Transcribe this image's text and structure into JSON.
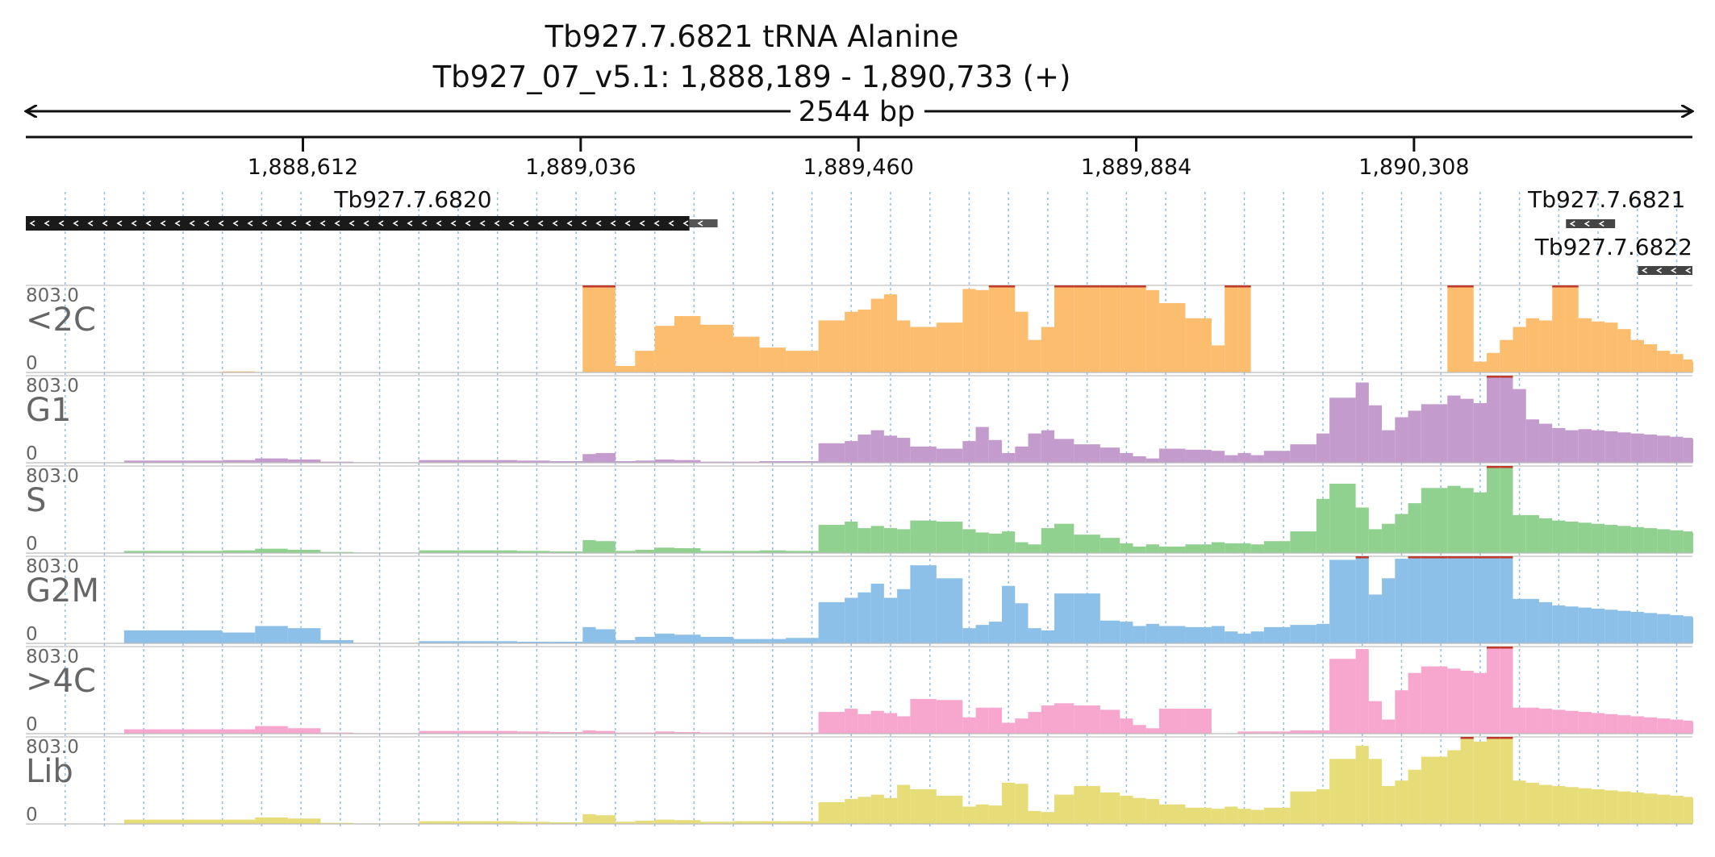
{
  "header": {
    "title_line1": "Tb927.7.6821  tRNA Alanine",
    "title_line2": "Tb927_07_v5.1: 1,888,189 - 1,890,733 (+)",
    "span_label": "2544 bp"
  },
  "chart_data": {
    "type": "bar",
    "region": {
      "chromosome": "Tb927_07_v5.1",
      "start": 1888189,
      "end": 1890733,
      "strand": "+"
    },
    "x_ticks": [
      {
        "pos": 1888612,
        "label": "1,888,612"
      },
      {
        "pos": 1889036,
        "label": "1,889,036"
      },
      {
        "pos": 1889460,
        "label": "1,889,460"
      },
      {
        "pos": 1889884,
        "label": "1,889,884"
      },
      {
        "pos": 1890308,
        "label": "1,890,308"
      }
    ],
    "genes": [
      {
        "name": "Tb927.7.6820",
        "cds_start": 1888189,
        "cds_end": 1889202,
        "utr_end": 1889245,
        "strand": "-"
      },
      {
        "name": "Tb927.7.6821",
        "cds_start": 1890540,
        "cds_end": 1890615,
        "utr_end": 1890615,
        "strand": "-"
      },
      {
        "name": "Tb927.7.6822",
        "cds_start": 1890650,
        "cds_end": 1890733,
        "utr_end": 1890733,
        "strand": "-"
      }
    ],
    "ylim": [
      0,
      803.0
    ],
    "y_max_label": "803.0",
    "y_min_label": "0",
    "bin_size_bp": 10,
    "bin_starts": [
      1888189,
      1888339,
      1888489,
      1888539,
      1888589,
      1888639,
      1888689,
      1888789,
      1888939,
      1888989,
      1889039,
      1889059,
      1889089,
      1889119,
      1889149,
      1889179,
      1889219,
      1889269,
      1889309,
      1889349,
      1889399,
      1889439,
      1889459,
      1889479,
      1889499,
      1889519,
      1889539,
      1889579,
      1889619,
      1889639,
      1889659,
      1889679,
      1889699,
      1889719,
      1889739,
      1889759,
      1889789,
      1889829,
      1889859,
      1889879,
      1889899,
      1889919,
      1889959,
      1889999,
      1890019,
      1890039,
      1890059,
      1890079,
      1890119,
      1890159,
      1890179,
      1890219,
      1890239,
      1890259,
      1890279,
      1890299,
      1890319,
      1890359,
      1890379,
      1890399,
      1890419,
      1890439,
      1890459,
      1890479,
      1890499,
      1890519,
      1890539,
      1890559,
      1890579,
      1890599,
      1890619,
      1890639,
      1890659,
      1890679,
      1890699,
      1890719,
      1890733
    ],
    "series": [
      {
        "name": "<2C",
        "color": "#fdbd6e",
        "values": [
          0,
          0,
          10,
          0,
          0,
          0,
          0,
          0,
          0,
          0,
          803,
          803,
          60,
          200,
          430,
          520,
          440,
          330,
          230,
          200,
          480,
          560,
          580,
          680,
          720,
          480,
          420,
          460,
          770,
          760,
          803,
          803,
          560,
          300,
          420,
          803,
          803,
          803,
          803,
          803,
          760,
          640,
          500,
          250,
          803,
          803,
          0,
          0,
          0,
          0,
          0,
          0,
          0,
          0,
          0,
          0,
          0,
          803,
          803,
          100,
          180,
          300,
          420,
          500,
          480,
          803,
          803,
          500,
          470,
          460,
          400,
          300,
          260,
          200,
          170,
          120,
          100
        ]
      },
      {
        "name": "G1",
        "color": "#c39bcc",
        "values": [
          0,
          20,
          25,
          40,
          30,
          10,
          5,
          25,
          20,
          15,
          80,
          90,
          15,
          20,
          30,
          25,
          10,
          10,
          15,
          15,
          180,
          200,
          260,
          300,
          250,
          230,
          150,
          130,
          200,
          330,
          210,
          90,
          150,
          270,
          300,
          220,
          170,
          140,
          90,
          60,
          40,
          130,
          120,
          110,
          70,
          90,
          70,
          110,
          170,
          270,
          600,
          740,
          530,
          300,
          420,
          480,
          540,
          620,
          590,
          550,
          803,
          803,
          680,
          400,
          360,
          320,
          300,
          310,
          300,
          290,
          280,
          270,
          260,
          250,
          240,
          230,
          220
        ]
      },
      {
        "name": "S",
        "color": "#90d18f",
        "values": [
          0,
          20,
          25,
          40,
          30,
          10,
          5,
          25,
          20,
          15,
          120,
          110,
          20,
          30,
          50,
          45,
          20,
          20,
          25,
          20,
          260,
          290,
          230,
          250,
          230,
          220,
          300,
          290,
          220,
          190,
          180,
          200,
          100,
          80,
          230,
          270,
          170,
          140,
          90,
          60,
          80,
          60,
          80,
          100,
          90,
          90,
          80,
          110,
          200,
          500,
          640,
          420,
          220,
          270,
          360,
          460,
          600,
          620,
          600,
          560,
          803,
          803,
          350,
          350,
          320,
          300,
          290,
          280,
          270,
          260,
          250,
          240,
          230,
          220,
          210,
          200,
          190
        ]
      },
      {
        "name": "G2M",
        "color": "#8cc0e8",
        "values": [
          0,
          120,
          100,
          160,
          140,
          30,
          5,
          20,
          15,
          15,
          150,
          130,
          30,
          60,
          90,
          80,
          60,
          40,
          40,
          50,
          380,
          420,
          470,
          550,
          420,
          500,
          720,
          600,
          140,
          170,
          200,
          530,
          370,
          140,
          120,
          460,
          460,
          210,
          200,
          160,
          180,
          160,
          150,
          160,
          110,
          90,
          110,
          150,
          170,
          180,
          770,
          803,
          450,
          600,
          780,
          803,
          803,
          803,
          803,
          803,
          803,
          803,
          410,
          410,
          380,
          350,
          340,
          330,
          320,
          310,
          300,
          290,
          280,
          270,
          260,
          250,
          240
        ]
      },
      {
        "name": ">4C",
        "color": "#f7a6cd",
        "values": [
          0,
          40,
          40,
          70,
          50,
          10,
          5,
          25,
          20,
          15,
          30,
          25,
          10,
          10,
          20,
          15,
          10,
          10,
          10,
          10,
          200,
          230,
          180,
          210,
          190,
          160,
          320,
          310,
          150,
          240,
          240,
          100,
          140,
          200,
          260,
          280,
          260,
          220,
          140,
          80,
          50,
          230,
          230,
          0,
          0,
          20,
          20,
          20,
          30,
          30,
          690,
          780,
          300,
          130,
          400,
          560,
          620,
          600,
          580,
          560,
          803,
          803,
          240,
          240,
          230,
          220,
          210,
          200,
          190,
          180,
          170,
          160,
          150,
          140,
          130,
          120,
          110
        ]
      },
      {
        "name": "Lib",
        "color": "#e6dd79",
        "values": [
          0,
          40,
          40,
          60,
          50,
          10,
          5,
          25,
          20,
          15,
          90,
          80,
          20,
          30,
          40,
          35,
          20,
          25,
          25,
          25,
          200,
          230,
          250,
          270,
          240,
          360,
          320,
          260,
          160,
          180,
          170,
          380,
          370,
          120,
          110,
          270,
          350,
          290,
          260,
          240,
          230,
          180,
          150,
          140,
          160,
          140,
          130,
          150,
          300,
          320,
          600,
          720,
          600,
          350,
          400,
          500,
          620,
          680,
          803,
          760,
          803,
          803,
          400,
          380,
          360,
          350,
          340,
          330,
          320,
          310,
          300,
          290,
          280,
          270,
          260,
          250,
          240
        ]
      }
    ]
  }
}
